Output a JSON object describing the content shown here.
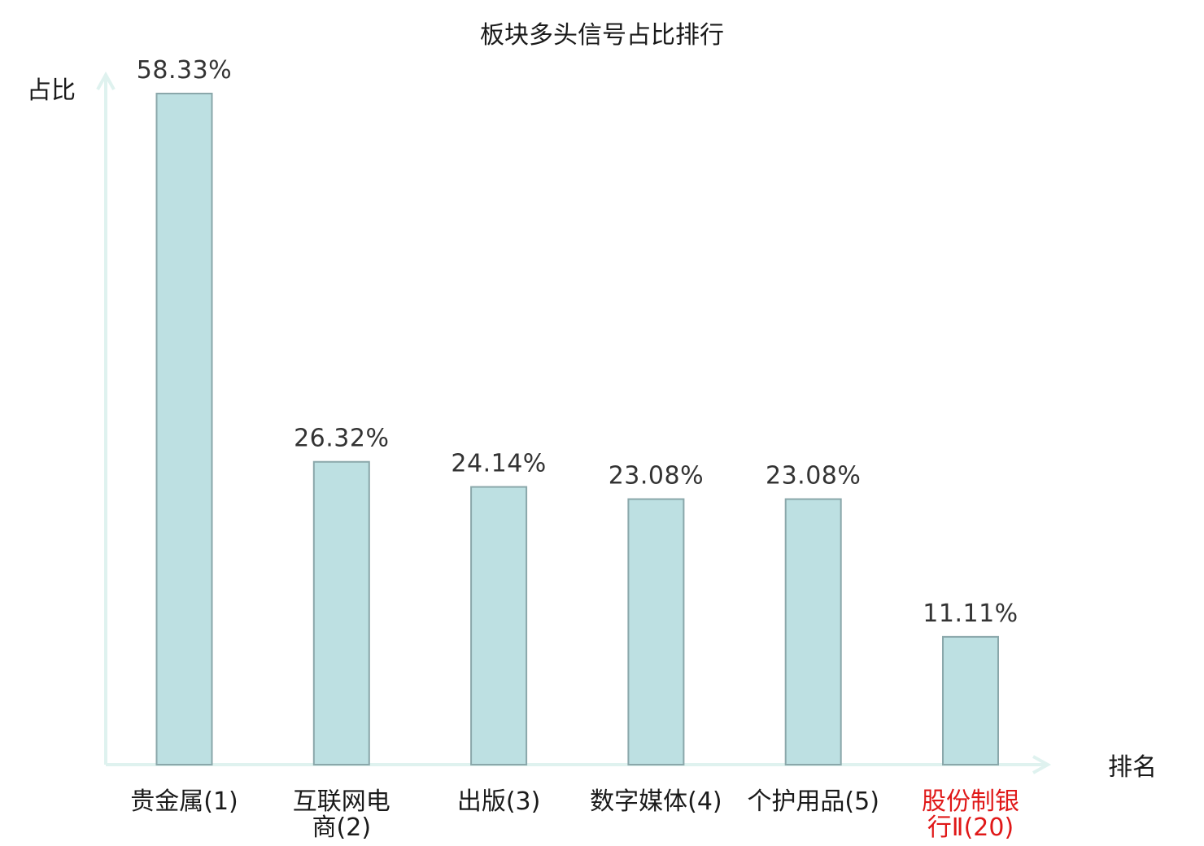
{
  "chart_data": {
    "type": "bar",
    "title": "板块多头信号占比排行",
    "ylabel": "占比",
    "xlabel": "排名",
    "categories": [
      [
        "贵金属(1)"
      ],
      [
        "互联网电",
        "商(2)"
      ],
      [
        "出版(3)"
      ],
      [
        "数字媒体(4)"
      ],
      [
        "个护用品(5)"
      ],
      [
        "股份制银",
        "行Ⅱ(20)"
      ]
    ],
    "values": [
      58.33,
      26.32,
      24.14,
      23.08,
      23.08,
      11.11
    ],
    "value_labels": [
      "58.33%",
      "26.32%",
      "24.14%",
      "23.08%",
      "23.08%",
      "11.11%"
    ],
    "highlight_index": 5,
    "ylim": [
      0,
      58.33
    ],
    "grid": false,
    "legend": "none"
  },
  "colors": {
    "bar_fill": "#bde0e2",
    "bar_stroke": "#8aa7aa",
    "axis": "#dff2ef",
    "text": "#1a1a1a",
    "value_text": "#333333",
    "highlight_text": "#e01818"
  }
}
